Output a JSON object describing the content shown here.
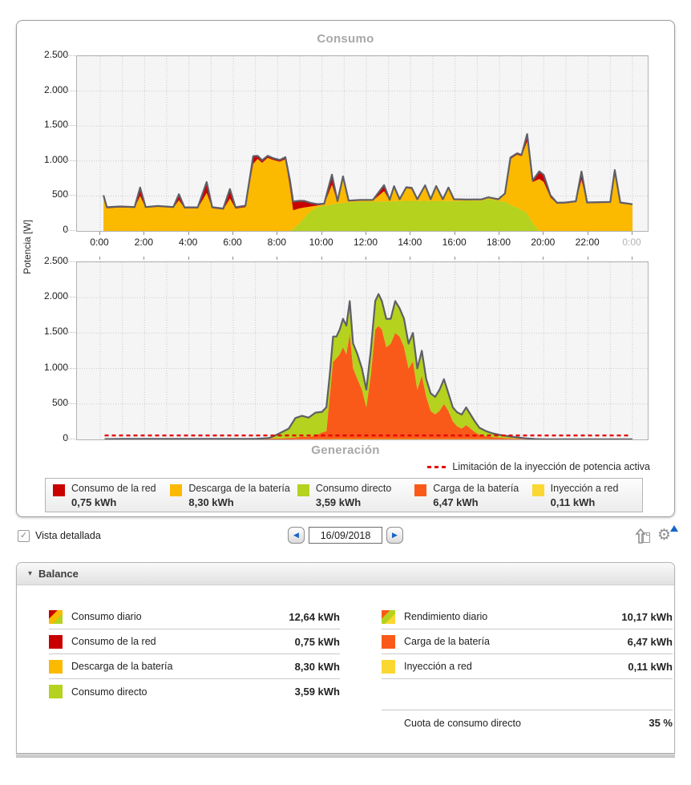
{
  "panel": {
    "top_title": "Consumo",
    "bottom_title": "Generación",
    "y_axis_label": "Potencia [W]",
    "legend": [
      {
        "label": "Consumo de la red",
        "value": "0,75 kWh",
        "color": "#c80000"
      },
      {
        "label": "Descarga de la batería",
        "value": "8,30 kWh",
        "color": "#fbb900"
      },
      {
        "label": "Consumo directo",
        "value": "3,59 kWh",
        "color": "#b4d21e"
      },
      {
        "label": "Carga de la batería",
        "value": "6,47 kWh",
        "color": "#fa5a19"
      },
      {
        "label": "Inyección a red",
        "value": "0,11 kWh",
        "color": "#fbd732"
      }
    ]
  },
  "controls": {
    "detail_label": "Vista detallada",
    "detail_checked": true,
    "date_value": "16/09/2018",
    "prev_glyph": "◀",
    "next_glyph": "▶"
  },
  "balance": {
    "title": "Balance",
    "left_rows": [
      {
        "swatch": [
          "#c80000",
          "#fbb900",
          "#b4d21e"
        ],
        "label": "Consumo diario",
        "value": "12,64 kWh"
      },
      {
        "swatch": "#c80000",
        "label": "Consumo de la red",
        "value": "0,75 kWh"
      },
      {
        "swatch": "#fbb900",
        "label": "Descarga de la batería",
        "value": "8,30 kWh"
      },
      {
        "swatch": "#b4d21e",
        "label": "Consumo directo",
        "value": "3,59 kWh"
      }
    ],
    "right_rows": [
      {
        "swatch": [
          "#fa5a19",
          "#b4d21e",
          "#fbd732"
        ],
        "label": "Rendimiento diario",
        "value": "10,17 kWh"
      },
      {
        "swatch": "#fa5a19",
        "label": "Carga de la batería",
        "value": "6,47 kWh"
      },
      {
        "swatch": "#fbd732",
        "label": "Inyección a red",
        "value": "0,11 kWh"
      }
    ],
    "quota_label": "Cuota de consumo directo",
    "quota_value": "35 %"
  },
  "chart_data": [
    {
      "type": "area",
      "title": "Consumo",
      "ylabel": "Potencia [W]",
      "ylim": [
        0,
        2500
      ],
      "xlim_hours": [
        0,
        24
      ],
      "grid": true,
      "x_tick_labels": [
        "0:00",
        "2:00",
        "4:00",
        "6:00",
        "8:00",
        "10:00",
        "12:00",
        "14:00",
        "16:00",
        "18:00",
        "20:00",
        "22:00",
        "0:00"
      ],
      "y_tick_labels": [
        "0",
        "500",
        "1.000",
        "1.500",
        "2.000",
        "2.500"
      ],
      "series_order_bottom_to_top": [
        "Consumo directo",
        "Descarga de la batería",
        "Consumo de la red"
      ],
      "colors": [
        "#b4d21e",
        "#fbb900",
        "#c80000"
      ],
      "outline_color": "#5f5f67",
      "points_t_v1_v2_v3": [
        [
          0.15,
          0,
          470,
          40
        ],
        [
          0.3,
          0,
          325,
          15
        ],
        [
          0.9,
          0,
          335,
          15
        ],
        [
          1.55,
          0,
          330,
          12
        ],
        [
          1.8,
          0,
          500,
          120
        ],
        [
          2.05,
          0,
          330,
          12
        ],
        [
          2.6,
          0,
          345,
          12
        ],
        [
          3.3,
          0,
          330,
          12
        ],
        [
          3.55,
          0,
          440,
          85
        ],
        [
          3.8,
          0,
          325,
          12
        ],
        [
          4.4,
          0,
          325,
          12
        ],
        [
          4.8,
          0,
          545,
          155
        ],
        [
          5.05,
          0,
          325,
          15
        ],
        [
          5.55,
          0,
          305,
          15
        ],
        [
          5.85,
          0,
          465,
          135
        ],
        [
          6.1,
          0,
          320,
          18
        ],
        [
          6.55,
          0,
          340,
          20
        ],
        [
          6.9,
          0,
          960,
          110
        ],
        [
          7.1,
          0,
          1030,
          45
        ],
        [
          7.3,
          0,
          975,
          35
        ],
        [
          7.55,
          0,
          1045,
          30
        ],
        [
          7.8,
          0,
          1015,
          25
        ],
        [
          8.1,
          0,
          990,
          25
        ],
        [
          8.35,
          0,
          1025,
          30
        ],
        [
          8.55,
          0,
          620,
          110
        ],
        [
          8.7,
          25,
          270,
          125
        ],
        [
          8.95,
          95,
          225,
          110
        ],
        [
          9.2,
          185,
          150,
          95
        ],
        [
          9.5,
          285,
          65,
          50
        ],
        [
          9.8,
          340,
          25,
          18
        ],
        [
          10.1,
          360,
          18,
          12
        ],
        [
          10.45,
          375,
          285,
          145
        ],
        [
          10.7,
          395,
          18,
          12
        ],
        [
          10.95,
          400,
          355,
          25
        ],
        [
          11.2,
          408,
          15,
          10
        ],
        [
          11.7,
          418,
          15,
          10
        ],
        [
          12.3,
          420,
          15,
          10
        ],
        [
          12.8,
          420,
          150,
          85
        ],
        [
          13.05,
          420,
          15,
          10
        ],
        [
          13.25,
          428,
          200,
          12
        ],
        [
          13.5,
          428,
          15,
          10
        ],
        [
          13.8,
          430,
          180,
          15
        ],
        [
          14.05,
          430,
          170,
          15
        ],
        [
          14.3,
          428,
          15,
          10
        ],
        [
          14.65,
          430,
          210,
          12
        ],
        [
          14.9,
          428,
          15,
          10
        ],
        [
          15.15,
          430,
          200,
          12
        ],
        [
          15.45,
          428,
          15,
          10
        ],
        [
          15.7,
          428,
          180,
          12
        ],
        [
          15.95,
          428,
          15,
          10
        ],
        [
          16.6,
          430,
          12,
          8
        ],
        [
          17.2,
          432,
          12,
          8
        ],
        [
          17.5,
          458,
          15,
          8
        ],
        [
          17.95,
          430,
          15,
          8
        ],
        [
          18.25,
          418,
          105,
          12
        ],
        [
          18.5,
          375,
          655,
          20
        ],
        [
          18.8,
          330,
          760,
          20
        ],
        [
          19.0,
          300,
          770,
          20
        ],
        [
          19.25,
          248,
          1032,
          105
        ],
        [
          19.5,
          115,
          585,
          20
        ],
        [
          19.8,
          0,
          742,
          110
        ],
        [
          20.0,
          0,
          700,
          100
        ],
        [
          20.3,
          0,
          478,
          32
        ],
        [
          20.6,
          0,
          390,
          12
        ],
        [
          21.0,
          0,
          395,
          12
        ],
        [
          21.45,
          0,
          412,
          12
        ],
        [
          21.7,
          0,
          728,
          122
        ],
        [
          21.95,
          0,
          395,
          12
        ],
        [
          22.5,
          0,
          400,
          12
        ],
        [
          23.0,
          0,
          402,
          12
        ],
        [
          23.2,
          0,
          795,
          75
        ],
        [
          23.45,
          0,
          395,
          12
        ],
        [
          24.0,
          0,
          372,
          10
        ]
      ]
    },
    {
      "type": "area",
      "title": "Generación",
      "ylabel": "Potencia [W]",
      "ylim": [
        0,
        2500
      ],
      "xlim_hours": [
        0,
        24
      ],
      "grid": true,
      "y_tick_labels": [
        "0",
        "500",
        "1.000",
        "1.500",
        "2.000",
        "2.500"
      ],
      "series_order_bottom_to_top": [
        "Inyección a red",
        "Carga de la batería",
        "Consumo directo"
      ],
      "colors": [
        "#fbd732",
        "#fa5a19",
        "#b4d21e"
      ],
      "outline_color": "#5f5f67",
      "limit_line": {
        "label": "Limitación de la inyección de potencia activa",
        "value_w": 55,
        "color": "#e60000",
        "t_start": 0.2,
        "t_end": 23.85
      },
      "points_t_v1_v2_v3": [
        [
          0.2,
          0,
          4,
          0
        ],
        [
          1.0,
          0,
          7,
          0
        ],
        [
          3.0,
          0,
          7,
          0
        ],
        [
          5.0,
          0,
          7,
          0
        ],
        [
          7.0,
          0,
          8,
          0
        ],
        [
          7.6,
          0,
          10,
          8
        ],
        [
          7.9,
          0,
          12,
          45
        ],
        [
          8.2,
          0,
          15,
          90
        ],
        [
          8.5,
          0,
          18,
          135
        ],
        [
          8.8,
          2,
          25,
          275
        ],
        [
          9.1,
          3,
          35,
          295
        ],
        [
          9.4,
          3,
          35,
          270
        ],
        [
          9.7,
          3,
          45,
          330
        ],
        [
          10.0,
          4,
          95,
          290
        ],
        [
          10.2,
          5,
          110,
          340
        ],
        [
          10.35,
          5,
          600,
          300
        ],
        [
          10.5,
          6,
          1090,
          355
        ],
        [
          10.65,
          6,
          1140,
          305
        ],
        [
          10.8,
          6,
          1195,
          350
        ],
        [
          10.95,
          6,
          1295,
          400
        ],
        [
          11.1,
          6,
          1195,
          405
        ],
        [
          11.25,
          6,
          1490,
          455
        ],
        [
          11.4,
          6,
          1000,
          350
        ],
        [
          11.6,
          6,
          845,
          350
        ],
        [
          11.8,
          6,
          695,
          300
        ],
        [
          12.0,
          6,
          448,
          248
        ],
        [
          12.2,
          6,
          895,
          350
        ],
        [
          12.4,
          6,
          1545,
          400
        ],
        [
          12.55,
          6,
          1595,
          450
        ],
        [
          12.7,
          6,
          1545,
          400
        ],
        [
          12.9,
          6,
          1295,
          400
        ],
        [
          13.1,
          6,
          1345,
          350
        ],
        [
          13.3,
          6,
          1495,
          450
        ],
        [
          13.5,
          6,
          1445,
          400
        ],
        [
          13.7,
          6,
          1295,
          400
        ],
        [
          13.9,
          6,
          995,
          350
        ],
        [
          14.1,
          6,
          1095,
          400
        ],
        [
          14.3,
          6,
          695,
          300
        ],
        [
          14.5,
          6,
          895,
          350
        ],
        [
          14.7,
          6,
          598,
          248
        ],
        [
          14.9,
          5,
          398,
          248
        ],
        [
          15.1,
          5,
          348,
          248
        ],
        [
          15.3,
          5,
          398,
          298
        ],
        [
          15.5,
          5,
          495,
          350
        ],
        [
          15.7,
          5,
          398,
          248
        ],
        [
          15.9,
          5,
          248,
          198
        ],
        [
          16.1,
          5,
          178,
          198
        ],
        [
          16.3,
          5,
          148,
          198
        ],
        [
          16.5,
          5,
          198,
          248
        ],
        [
          16.7,
          5,
          148,
          198
        ],
        [
          16.9,
          4,
          98,
          148
        ],
        [
          17.1,
          4,
          60,
          100
        ],
        [
          17.4,
          4,
          40,
          72
        ],
        [
          17.7,
          3,
          30,
          52
        ],
        [
          18.0,
          3,
          22,
          40
        ],
        [
          18.4,
          2,
          15,
          28
        ],
        [
          18.8,
          2,
          10,
          16
        ],
        [
          19.2,
          1,
          6,
          8
        ],
        [
          19.6,
          0,
          3,
          3
        ],
        [
          20.0,
          0,
          2,
          0
        ],
        [
          22.0,
          0,
          2,
          0
        ],
        [
          24.0,
          0,
          2,
          0
        ]
      ]
    }
  ]
}
